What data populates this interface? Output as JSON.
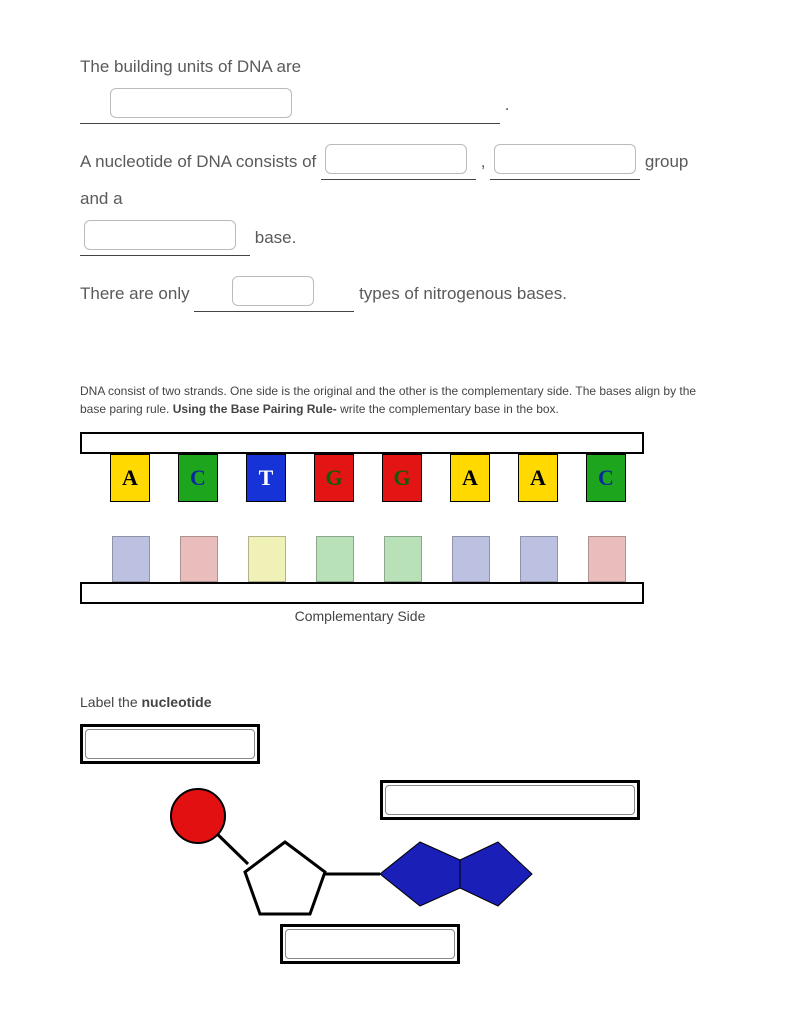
{
  "questions": {
    "q1_pre": "The building units of DNA are ",
    "q1_post": " .",
    "q2_pre": "A nucleotide of DNA consists of ",
    "q2_mid1": ", ",
    "q2_mid2": " group and a ",
    "q2_base": " base.",
    "q3_pre": "There are only ",
    "q3_post": " types of nitrogenous bases."
  },
  "pairing_instructions": {
    "line1": "DNA consist of two strands.  One side is the original and the other is the complementary side.  The bases align by the base paring rule.  ",
    "bold": "Using the Base Pairing Rule- ",
    "line2": "write the complementary base in the box."
  },
  "top_bases": [
    {
      "letter": "A",
      "bg": "#ffd900",
      "fg": "#000000"
    },
    {
      "letter": "C",
      "bg": "#1ea51e",
      "fg": "#0a2a9a"
    },
    {
      "letter": "T",
      "bg": "#1533d6",
      "fg": "#ffffff"
    },
    {
      "letter": "G",
      "bg": "#e21414",
      "fg": "#0b5f0b"
    },
    {
      "letter": "G",
      "bg": "#e21414",
      "fg": "#0b5f0b"
    },
    {
      "letter": "A",
      "bg": "#ffd900",
      "fg": "#000000"
    },
    {
      "letter": "A",
      "bg": "#ffd900",
      "fg": "#000000"
    },
    {
      "letter": "C",
      "bg": "#1ea51e",
      "fg": "#0a2a9a"
    }
  ],
  "bottom_base_colors": [
    "#a8add8",
    "#e3a8a8",
    "#eced9f",
    "#a1d7a1",
    "#a1d7a1",
    "#a8add8",
    "#a8add8",
    "#e3a8a8"
  ],
  "comp_label": "Complementary Side",
  "nucleotide_label_pre": "Label the ",
  "nucleotide_label_bold": "nucleotide",
  "nucleotide_colors": {
    "phosphate": "#e21010",
    "sugar_fill": "#ffffff",
    "sugar_stroke": "#000000",
    "base_fill": "#1a1fb8",
    "bond": "#000000"
  }
}
